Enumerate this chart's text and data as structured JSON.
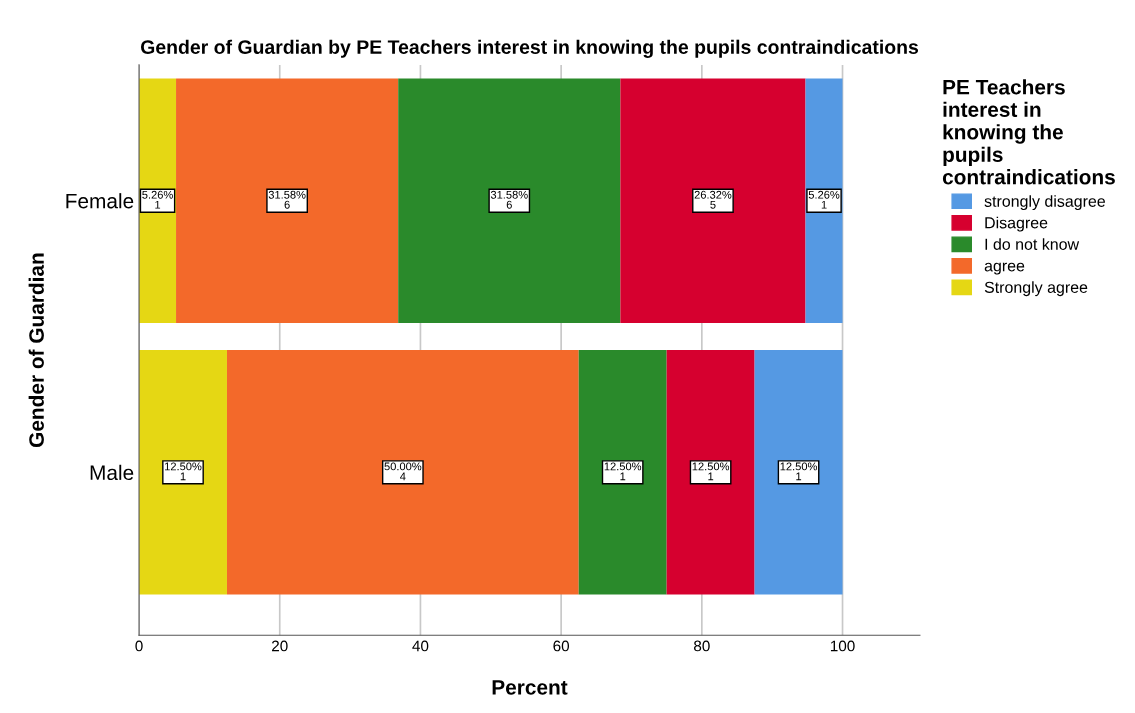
{
  "chart_data": {
    "type": "bar",
    "orientation": "horizontal",
    "stacked": true,
    "title": "Gender of Guardian by PE Teachers interest in knowing the pupils contraindications",
    "xlabel": "Percent",
    "ylabel": "Gender of Guardian",
    "legend_title": "PE Teachers interest in knowing the pupils contraindications",
    "categories": [
      "Female",
      "Male"
    ],
    "series": [
      {
        "name": "Strongly agree",
        "color": "#e5d714",
        "values": [
          5.26,
          12.5
        ],
        "value_labels": [
          "5.26%\n1",
          "12.50%\n1"
        ]
      },
      {
        "name": "agree",
        "color": "#f3692a",
        "values": [
          31.58,
          50.0
        ],
        "value_labels": [
          "31.58%\n6",
          "50.00%\n4"
        ]
      },
      {
        "name": "I do not know",
        "color": "#2a8a2b",
        "values": [
          31.58,
          12.5
        ],
        "value_labels": [
          "31.58%\n6",
          "12.50%\n1"
        ]
      },
      {
        "name": "Disagree",
        "color": "#d6002f",
        "values": [
          26.32,
          12.5
        ],
        "value_labels": [
          "26.32%\n5",
          "12.50%\n1"
        ]
      },
      {
        "name": "strongly disagree",
        "color": "#5599e3",
        "values": [
          5.26,
          12.5
        ],
        "value_labels": [
          "5.26%\n1",
          "12.50%\n1"
        ]
      }
    ],
    "xlim": [
      0,
      111
    ],
    "xticks": [
      0,
      20,
      40,
      60,
      80,
      100
    ],
    "grid": "x",
    "legend": "right"
  }
}
